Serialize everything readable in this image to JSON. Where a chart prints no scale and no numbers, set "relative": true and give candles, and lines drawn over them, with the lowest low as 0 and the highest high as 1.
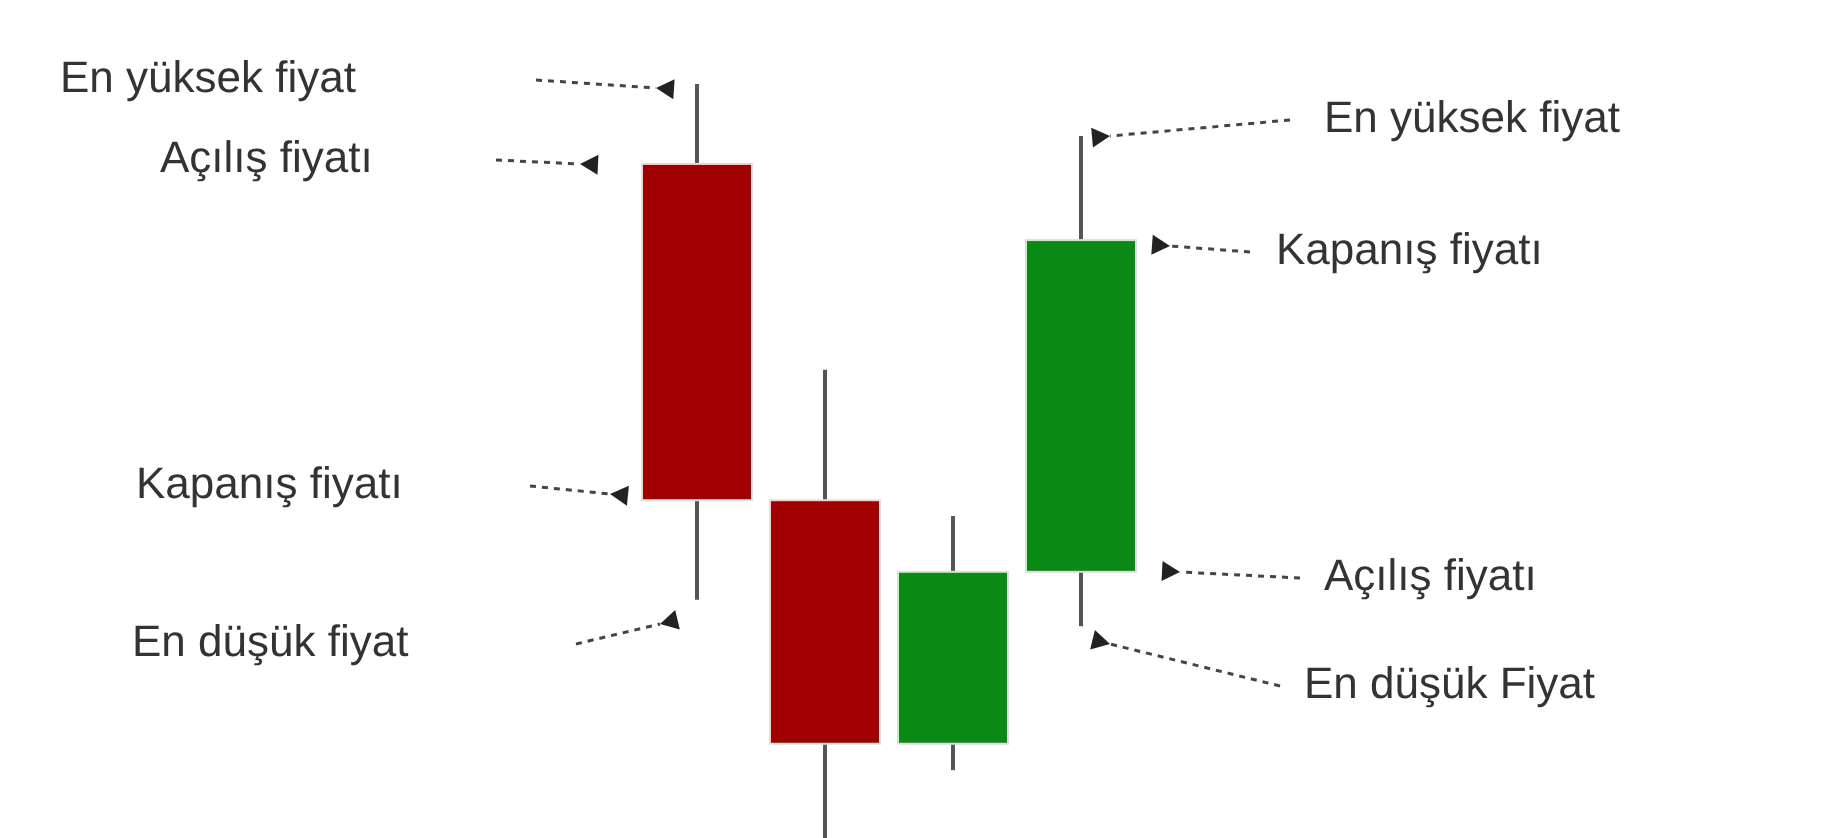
{
  "chart_data": {
    "type": "candlestick",
    "relative": true,
    "categories": [
      null,
      null,
      null,
      null
    ],
    "ohlc": [
      [
        0.894,
        1,
        0.316,
        0.448
      ],
      [
        0.448,
        0.621,
        0,
        0.125
      ],
      [
        0.125,
        0.427,
        0.09,
        0.353
      ],
      [
        0.353,
        0.931,
        0.281,
        0.793
      ]
    ],
    "colors": [
      "#a00000",
      "#a00000",
      "#0a8a14",
      "#0a8a14"
    ],
    "annotations": [
      "En yüksek fiyat",
      "Açılış fiyatı",
      "Kapanış fiyatı",
      "En düşük fiyat",
      "En yüksek fiyat",
      "Kapanış fiyatı",
      "Açılış fiyatı",
      "En düşük Fiyat"
    ]
  }
}
